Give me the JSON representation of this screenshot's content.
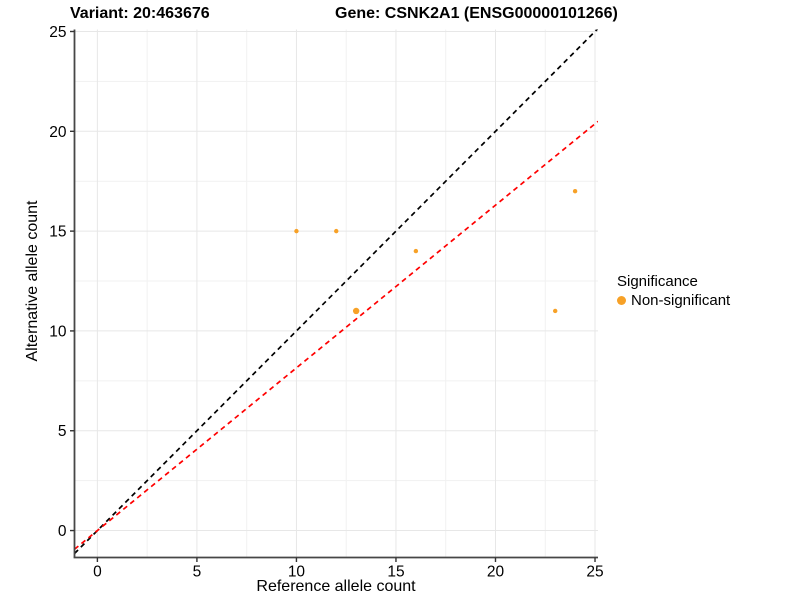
{
  "chart_data": {
    "type": "scatter",
    "title_left": "Variant: 20:463676",
    "title_right": "Gene: CSNK2A1 (ENSG00000101266)",
    "xlabel": "Reference allele count",
    "ylabel": "Alternative allele count",
    "xlim": [
      -1.15,
      25.15
    ],
    "ylim": [
      -1.35,
      25.1
    ],
    "xticks": [
      0,
      5,
      10,
      15,
      20,
      25
    ],
    "yticks": [
      0,
      5,
      10,
      15,
      20,
      25
    ],
    "minor_ticks_x": [
      2.5,
      7.5,
      12.5,
      17.5,
      22.5
    ],
    "minor_ticks_y": [
      2.5,
      7.5,
      12.5,
      17.5,
      22.5
    ],
    "grid": "on",
    "points": [
      {
        "x": 10,
        "y": 15,
        "r": 2.2,
        "significance": "Non-significant"
      },
      {
        "x": 12,
        "y": 15,
        "r": 2.2,
        "significance": "Non-significant"
      },
      {
        "x": 13,
        "y": 11,
        "r": 3.2,
        "significance": "Non-significant"
      },
      {
        "x": 16,
        "y": 14,
        "r": 2.2,
        "significance": "Non-significant"
      },
      {
        "x": 23,
        "y": 11,
        "r": 2.2,
        "significance": "Non-significant"
      },
      {
        "x": 24,
        "y": 17,
        "r": 2.2,
        "significance": "Non-significant"
      }
    ],
    "trend_lines": [
      {
        "name": "identity-line",
        "slope": 1.0,
        "intercept": 0,
        "color": "#000000",
        "style": "dashed"
      },
      {
        "name": "expected-ratio-line",
        "slope": 0.815,
        "intercept": 0,
        "color": "#FF0000",
        "style": "dashed"
      }
    ],
    "legend": {
      "position": "right",
      "title": "Significance",
      "items": [
        {
          "label": "Non-significant",
          "color": "#F7A127"
        }
      ]
    },
    "colors": {
      "point": "#F7A127",
      "grid_major": "#E7E7E7",
      "grid_minor": "#F1F1F1",
      "axis_line": "#474747",
      "tick_mark": "#333333",
      "tick_label": "#000000",
      "background": "#FFFFFF"
    }
  }
}
